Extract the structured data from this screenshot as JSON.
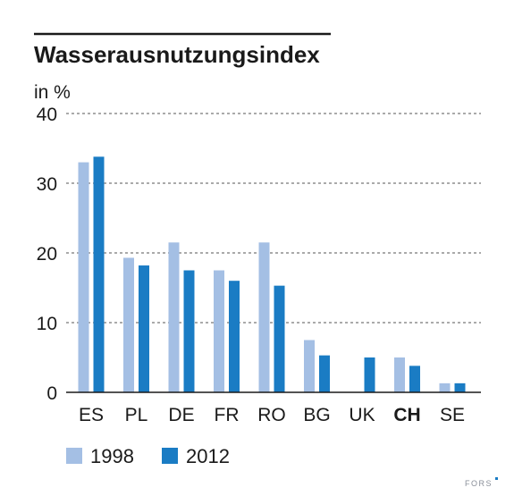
{
  "chart_data": {
    "type": "bar",
    "title": "Wasserausnutzungsindex",
    "ylabel": "in %",
    "xlabel": "",
    "ylim": [
      0,
      40
    ],
    "yticks": [
      0,
      10,
      20,
      30,
      40
    ],
    "grid": true,
    "categories": [
      "ES",
      "PL",
      "DE",
      "FR",
      "RO",
      "BG",
      "UK",
      "CH",
      "SE"
    ],
    "highlighted_category": "CH",
    "series": [
      {
        "name": "1998",
        "color": "#a4bfe4",
        "values": [
          33.0,
          19.3,
          21.5,
          17.5,
          21.5,
          7.5,
          null,
          5.0,
          1.3
        ]
      },
      {
        "name": "2012",
        "color": "#1a7cc4",
        "values": [
          33.8,
          18.2,
          17.5,
          16.0,
          15.3,
          5.3,
          5.0,
          3.8,
          1.3
        ]
      }
    ],
    "legend_position": "bottom-left"
  },
  "credit": "FORS"
}
